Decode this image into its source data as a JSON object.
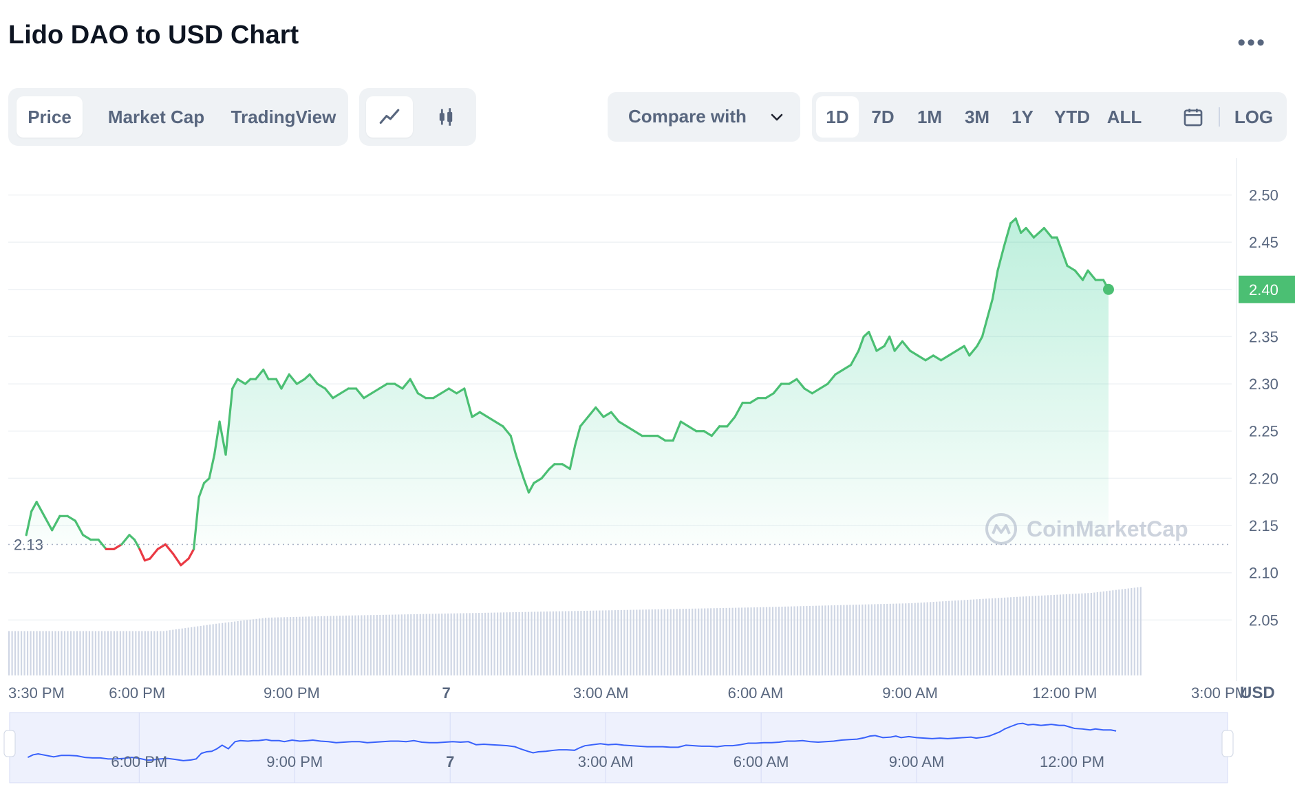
{
  "header": {
    "title": "Lido DAO to USD Chart",
    "more_label": "•••"
  },
  "view_tabs": [
    {
      "label": "Price",
      "active": true
    },
    {
      "label": "Market Cap",
      "active": false
    },
    {
      "label": "TradingView",
      "active": false
    }
  ],
  "chart_style_buttons": [
    {
      "icon": "line-chart-icon",
      "active": true
    },
    {
      "icon": "candlestick-icon",
      "active": false
    }
  ],
  "compare": {
    "label": "Compare with",
    "icon": "chevron-down-icon"
  },
  "ranges": [
    {
      "label": "1D",
      "active": true
    },
    {
      "label": "7D",
      "active": false
    },
    {
      "label": "1M",
      "active": false
    },
    {
      "label": "3M",
      "active": false
    },
    {
      "label": "1Y",
      "active": false
    },
    {
      "label": "YTD",
      "active": false
    },
    {
      "label": "ALL",
      "active": false
    }
  ],
  "calendar_icon": "calendar-icon",
  "log_label": "LOG",
  "colors": {
    "up": "#16c784",
    "line_up": "#4bbf73",
    "down": "#ea3943",
    "accent": "#3861fb",
    "volume": "#cfd6e4"
  },
  "chart_data": {
    "type": "area",
    "currency": "USD",
    "open_price": 2.13,
    "open_price_label": "2.13",
    "last_price": 2.4,
    "last_price_label": "2.40",
    "ylim": [
      2.0,
      2.52
    ],
    "y_ticks": [
      "2.50",
      "2.45",
      "2.40",
      "2.35",
      "2.30",
      "2.25",
      "2.20",
      "2.15",
      "2.10",
      "2.05"
    ],
    "x_ticks": [
      {
        "label": "3:30 PM",
        "t": 15.5,
        "bold": false
      },
      {
        "label": "6:00 PM",
        "t": 18,
        "bold": false
      },
      {
        "label": "9:00 PM",
        "t": 21,
        "bold": false
      },
      {
        "label": "7",
        "t": 24,
        "bold": true
      },
      {
        "label": "3:00 AM",
        "t": 27,
        "bold": false
      },
      {
        "label": "6:00 AM",
        "t": 30,
        "bold": false
      },
      {
        "label": "9:00 AM",
        "t": 33,
        "bold": false
      },
      {
        "label": "12:00 PM",
        "t": 36,
        "bold": false
      },
      {
        "label": "3:00 PM",
        "t": 39,
        "bold": false
      }
    ],
    "watermark": "CoinMarketCap",
    "series": [
      {
        "name": "Price",
        "points": [
          [
            15.85,
            2.14
          ],
          [
            15.95,
            2.165
          ],
          [
            16.05,
            2.175
          ],
          [
            16.2,
            2.16
          ],
          [
            16.35,
            2.145
          ],
          [
            16.5,
            2.16
          ],
          [
            16.65,
            2.16
          ],
          [
            16.8,
            2.155
          ],
          [
            16.95,
            2.14
          ],
          [
            17.1,
            2.135
          ],
          [
            17.25,
            2.135
          ],
          [
            17.4,
            2.125
          ],
          [
            17.55,
            2.125
          ],
          [
            17.7,
            2.13
          ],
          [
            17.85,
            2.14
          ],
          [
            17.95,
            2.135
          ],
          [
            18.05,
            2.125
          ],
          [
            18.15,
            2.113
          ],
          [
            18.25,
            2.115
          ],
          [
            18.4,
            2.125
          ],
          [
            18.55,
            2.13
          ],
          [
            18.7,
            2.12
          ],
          [
            18.85,
            2.108
          ],
          [
            19.0,
            2.115
          ],
          [
            19.1,
            2.125
          ],
          [
            19.2,
            2.18
          ],
          [
            19.3,
            2.195
          ],
          [
            19.4,
            2.2
          ],
          [
            19.5,
            2.225
          ],
          [
            19.6,
            2.26
          ],
          [
            19.72,
            2.225
          ],
          [
            19.85,
            2.295
          ],
          [
            19.95,
            2.305
          ],
          [
            20.1,
            2.3
          ],
          [
            20.2,
            2.305
          ],
          [
            20.3,
            2.305
          ],
          [
            20.45,
            2.315
          ],
          [
            20.55,
            2.305
          ],
          [
            20.7,
            2.305
          ],
          [
            20.8,
            2.295
          ],
          [
            20.95,
            2.31
          ],
          [
            21.1,
            2.3
          ],
          [
            21.25,
            2.305
          ],
          [
            21.35,
            2.31
          ],
          [
            21.5,
            2.3
          ],
          [
            21.65,
            2.295
          ],
          [
            21.8,
            2.285
          ],
          [
            21.95,
            2.29
          ],
          [
            22.1,
            2.295
          ],
          [
            22.25,
            2.295
          ],
          [
            22.4,
            2.285
          ],
          [
            22.55,
            2.29
          ],
          [
            22.7,
            2.295
          ],
          [
            22.85,
            2.3
          ],
          [
            23.0,
            2.3
          ],
          [
            23.15,
            2.295
          ],
          [
            23.3,
            2.305
          ],
          [
            23.45,
            2.29
          ],
          [
            23.6,
            2.285
          ],
          [
            23.75,
            2.285
          ],
          [
            23.9,
            2.29
          ],
          [
            24.05,
            2.295
          ],
          [
            24.2,
            2.29
          ],
          [
            24.35,
            2.295
          ],
          [
            24.5,
            2.265
          ],
          [
            24.65,
            2.27
          ],
          [
            24.8,
            2.265
          ],
          [
            24.95,
            2.26
          ],
          [
            25.1,
            2.255
          ],
          [
            25.25,
            2.245
          ],
          [
            25.35,
            2.225
          ],
          [
            25.5,
            2.2
          ],
          [
            25.6,
            2.185
          ],
          [
            25.7,
            2.195
          ],
          [
            25.85,
            2.2
          ],
          [
            26.0,
            2.21
          ],
          [
            26.1,
            2.215
          ],
          [
            26.25,
            2.215
          ],
          [
            26.4,
            2.21
          ],
          [
            26.5,
            2.235
          ],
          [
            26.6,
            2.255
          ],
          [
            26.75,
            2.265
          ],
          [
            26.9,
            2.275
          ],
          [
            27.05,
            2.265
          ],
          [
            27.2,
            2.27
          ],
          [
            27.35,
            2.26
          ],
          [
            27.5,
            2.255
          ],
          [
            27.65,
            2.25
          ],
          [
            27.8,
            2.245
          ],
          [
            27.95,
            2.245
          ],
          [
            28.1,
            2.245
          ],
          [
            28.25,
            2.24
          ],
          [
            28.4,
            2.24
          ],
          [
            28.55,
            2.26
          ],
          [
            28.7,
            2.255
          ],
          [
            28.85,
            2.25
          ],
          [
            29.0,
            2.25
          ],
          [
            29.15,
            2.245
          ],
          [
            29.3,
            2.255
          ],
          [
            29.45,
            2.255
          ],
          [
            29.6,
            2.265
          ],
          [
            29.75,
            2.28
          ],
          [
            29.9,
            2.28
          ],
          [
            30.05,
            2.285
          ],
          [
            30.2,
            2.285
          ],
          [
            30.35,
            2.29
          ],
          [
            30.5,
            2.3
          ],
          [
            30.65,
            2.3
          ],
          [
            30.8,
            2.305
          ],
          [
            30.95,
            2.295
          ],
          [
            31.1,
            2.29
          ],
          [
            31.25,
            2.295
          ],
          [
            31.4,
            2.3
          ],
          [
            31.55,
            2.31
          ],
          [
            31.7,
            2.315
          ],
          [
            31.85,
            2.32
          ],
          [
            32.0,
            2.335
          ],
          [
            32.1,
            2.35
          ],
          [
            32.2,
            2.355
          ],
          [
            32.35,
            2.335
          ],
          [
            32.5,
            2.34
          ],
          [
            32.6,
            2.35
          ],
          [
            32.7,
            2.335
          ],
          [
            32.85,
            2.345
          ],
          [
            33.0,
            2.335
          ],
          [
            33.15,
            2.33
          ],
          [
            33.3,
            2.325
          ],
          [
            33.45,
            2.33
          ],
          [
            33.6,
            2.325
          ],
          [
            33.75,
            2.33
          ],
          [
            33.9,
            2.335
          ],
          [
            34.05,
            2.34
          ],
          [
            34.15,
            2.33
          ],
          [
            34.3,
            2.34
          ],
          [
            34.4,
            2.35
          ],
          [
            34.5,
            2.37
          ],
          [
            34.6,
            2.39
          ],
          [
            34.7,
            2.42
          ],
          [
            34.82,
            2.445
          ],
          [
            34.95,
            2.47
          ],
          [
            35.05,
            2.475
          ],
          [
            35.15,
            2.46
          ],
          [
            35.25,
            2.465
          ],
          [
            35.4,
            2.455
          ],
          [
            35.5,
            2.46
          ],
          [
            35.6,
            2.465
          ],
          [
            35.75,
            2.455
          ],
          [
            35.85,
            2.455
          ],
          [
            35.95,
            2.44
          ],
          [
            36.05,
            2.425
          ],
          [
            36.2,
            2.42
          ],
          [
            36.35,
            2.41
          ],
          [
            36.45,
            2.42
          ],
          [
            36.6,
            2.41
          ],
          [
            36.75,
            2.41
          ],
          [
            36.85,
            2.4
          ]
        ]
      }
    ],
    "volume": {
      "name": "Volume",
      "relative_levels": [
        [
          15.5,
          0.43
        ],
        [
          18.5,
          0.43
        ],
        [
          19.5,
          0.5
        ],
        [
          20.5,
          0.56
        ],
        [
          22.0,
          0.58
        ],
        [
          24.0,
          0.6
        ],
        [
          27.0,
          0.63
        ],
        [
          30.0,
          0.66
        ],
        [
          33.0,
          0.7
        ],
        [
          35.0,
          0.76
        ],
        [
          36.5,
          0.8
        ],
        [
          37.5,
          0.86
        ]
      ]
    },
    "navigator": {
      "x_ticks": [
        "6:00 PM",
        "9:00 PM",
        "7",
        "3:00 AM",
        "6:00 AM",
        "9:00 AM",
        "12:00 PM"
      ]
    }
  }
}
